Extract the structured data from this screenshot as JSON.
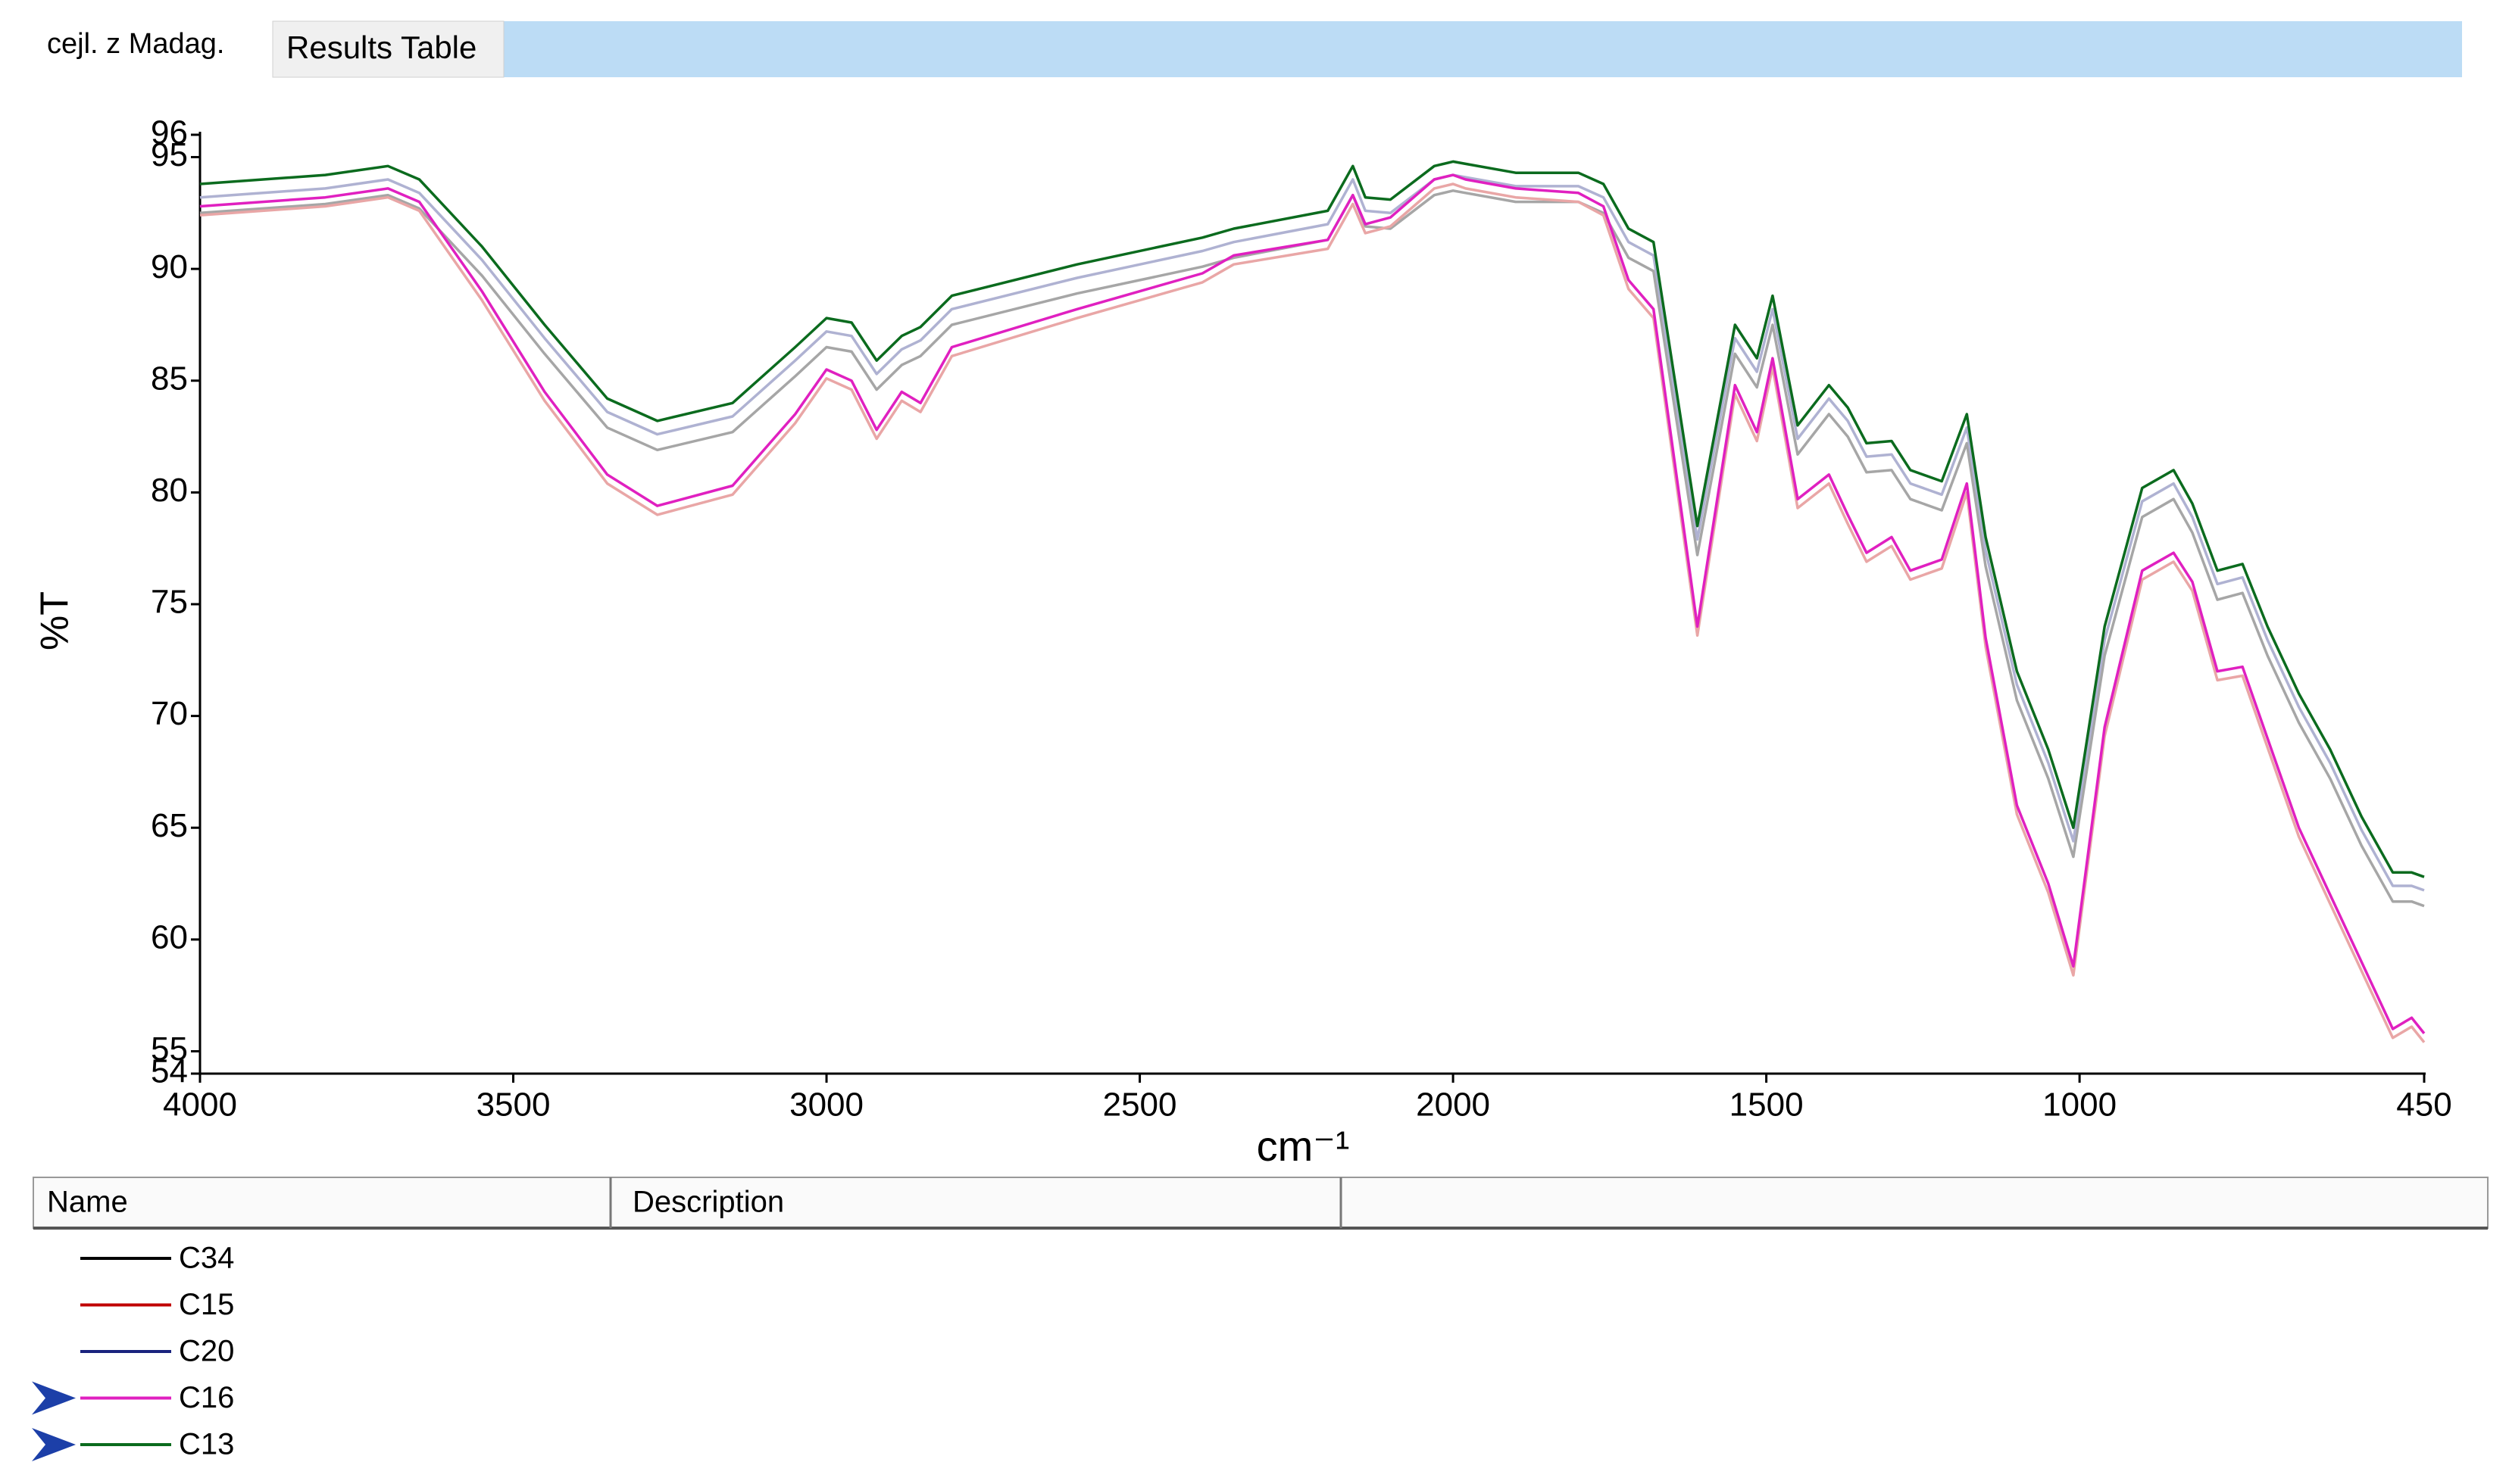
{
  "tabs": [
    "cejl. z Madag.",
    "Results Table"
  ],
  "table": {
    "headers": [
      "Name",
      "Description"
    ]
  },
  "chart_data": {
    "type": "line",
    "y_label": "%T",
    "x_label": "cm⁻¹",
    "xlim": [
      4000,
      450
    ],
    "ylim": [
      54,
      96
    ],
    "xticks": [
      4000,
      3500,
      3000,
      2500,
      2000,
      1500,
      1000,
      450
    ],
    "yticks": [
      54,
      55,
      60,
      65,
      70,
      75,
      80,
      85,
      90,
      95,
      96
    ],
    "x": [
      4000,
      3800,
      3700,
      3650,
      3550,
      3450,
      3350,
      3270,
      3150,
      3050,
      3000,
      2960,
      2920,
      2880,
      2850,
      2800,
      2600,
      2400,
      2350,
      2200,
      2160,
      2140,
      2100,
      2030,
      2000,
      1980,
      1900,
      1800,
      1760,
      1720,
      1680,
      1610,
      1550,
      1515,
      1490,
      1450,
      1400,
      1370,
      1340,
      1300,
      1270,
      1220,
      1180,
      1150,
      1100,
      1050,
      1010,
      960,
      900,
      850,
      820,
      780,
      740,
      700,
      650,
      600,
      550,
      500,
      470,
      450
    ],
    "series": [
      {
        "name": "C34",
        "color": "#000000",
        "selected": false,
        "values": [
          92.5,
          92.9,
          93.3,
          92.7,
          89.7,
          86.2,
          82.9,
          81.9,
          82.7,
          85.2,
          86.5,
          86.3,
          84.6,
          85.7,
          86.1,
          87.5,
          88.9,
          90.1,
          90.5,
          91.3,
          93.3,
          91.9,
          91.8,
          93.3,
          93.5,
          93.4,
          93.0,
          93.0,
          92.5,
          90.5,
          89.9,
          77.2,
          86.2,
          84.7,
          87.5,
          81.7,
          83.5,
          82.5,
          80.9,
          81.0,
          79.7,
          79.2,
          82.2,
          76.7,
          70.7,
          67.2,
          63.7,
          72.7,
          78.9,
          79.7,
          78.2,
          75.2,
          75.5,
          72.7,
          69.7,
          67.2,
          64.2,
          61.7,
          61.7,
          61.5
        ]
      },
      {
        "name": "C15",
        "color": "#c00000",
        "selected": false,
        "values": [
          92.4,
          92.8,
          93.2,
          92.6,
          88.6,
          84.1,
          80.4,
          79.0,
          79.9,
          83.1,
          85.1,
          84.6,
          82.4,
          84.1,
          83.6,
          86.1,
          87.8,
          89.4,
          90.2,
          90.9,
          92.9,
          91.6,
          91.9,
          93.6,
          93.8,
          93.6,
          93.2,
          93.0,
          92.4,
          89.1,
          87.8,
          73.6,
          84.4,
          82.3,
          85.6,
          79.3,
          80.4,
          78.6,
          76.9,
          77.6,
          76.1,
          76.6,
          80.0,
          73.1,
          65.6,
          62.1,
          58.4,
          69.1,
          76.1,
          76.9,
          75.6,
          71.6,
          71.8,
          68.6,
          64.6,
          61.6,
          58.6,
          55.6,
          56.1,
          55.4
        ]
      },
      {
        "name": "C20",
        "color": "#1a237e",
        "selected": false,
        "values": [
          93.2,
          93.6,
          94.0,
          93.4,
          90.4,
          86.9,
          83.6,
          82.6,
          83.4,
          85.9,
          87.2,
          87.0,
          85.3,
          86.4,
          86.8,
          88.2,
          89.6,
          90.8,
          91.2,
          92.0,
          94.0,
          92.6,
          92.5,
          94.0,
          94.2,
          94.1,
          93.7,
          93.7,
          93.2,
          91.2,
          90.6,
          77.9,
          86.9,
          85.4,
          88.2,
          82.4,
          84.2,
          83.2,
          81.6,
          81.7,
          80.4,
          79.9,
          82.9,
          77.4,
          71.4,
          67.9,
          64.4,
          73.4,
          79.6,
          80.4,
          78.9,
          75.9,
          76.2,
          73.4,
          70.4,
          67.9,
          64.9,
          62.4,
          62.4,
          62.2
        ]
      },
      {
        "name": "C16",
        "color": "#e020c0",
        "selected": true,
        "values": [
          92.8,
          93.2,
          93.6,
          93.0,
          89.0,
          84.5,
          80.8,
          79.4,
          80.3,
          83.5,
          85.5,
          85.0,
          82.8,
          84.5,
          84.0,
          86.5,
          88.2,
          89.8,
          90.6,
          91.3,
          93.3,
          92.0,
          92.3,
          94.0,
          94.2,
          94.0,
          93.6,
          93.4,
          92.8,
          89.5,
          88.2,
          74.0,
          84.8,
          82.7,
          86.0,
          79.7,
          80.8,
          79.0,
          77.3,
          78.0,
          76.5,
          77.0,
          80.4,
          73.5,
          66.0,
          62.5,
          58.8,
          69.5,
          76.5,
          77.3,
          76.0,
          72.0,
          72.2,
          69.0,
          65.0,
          62.0,
          59.0,
          56.0,
          56.5,
          55.8
        ]
      },
      {
        "name": "C13",
        "color": "#0b6b1e",
        "selected": true,
        "values": [
          93.8,
          94.2,
          94.6,
          94.0,
          91.0,
          87.5,
          84.2,
          83.2,
          84.0,
          86.5,
          87.8,
          87.6,
          85.9,
          87.0,
          87.4,
          88.8,
          90.2,
          91.4,
          91.8,
          92.6,
          94.6,
          93.2,
          93.1,
          94.6,
          94.8,
          94.7,
          94.3,
          94.3,
          93.8,
          91.8,
          91.2,
          78.5,
          87.5,
          86.0,
          88.8,
          83.0,
          84.8,
          83.8,
          82.2,
          82.3,
          81.0,
          80.5,
          83.5,
          78.0,
          72.0,
          68.5,
          65.0,
          74.0,
          80.2,
          81.0,
          79.5,
          76.5,
          76.8,
          74.0,
          71.0,
          68.5,
          65.5,
          63.0,
          63.0,
          62.8
        ]
      }
    ]
  }
}
